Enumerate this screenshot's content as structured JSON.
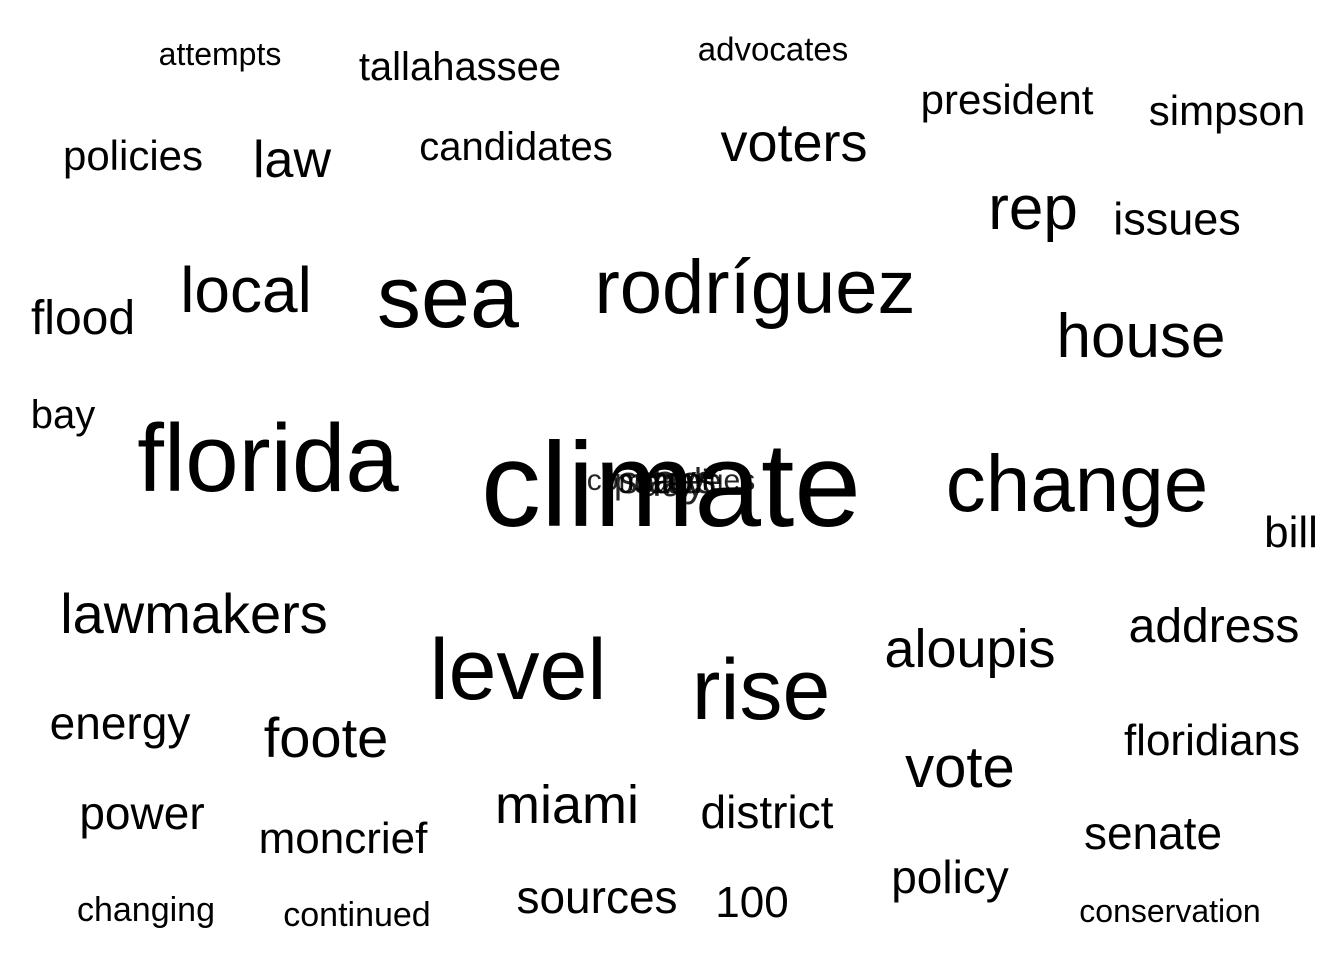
{
  "text_color": "#000000",
  "background_color": "#ffffff",
  "words": [
    "attempts",
    "tallahassee",
    "advocates",
    "president",
    "simpson",
    "policies",
    "law",
    "candidates",
    "voters",
    "rep",
    "issues",
    "local",
    "sea",
    "rodríguez",
    "flood",
    "house",
    "bay",
    "florida",
    "climate",
    "change",
    "bill",
    "lawmakers",
    "level",
    "rise",
    "aloupis",
    "address",
    "energy",
    "foote",
    "vote",
    "floridians",
    "power",
    "moncrief",
    "miami",
    "district",
    "senate",
    "policy",
    "changing",
    "continued",
    "sources",
    "100",
    "conservation",
    "communities",
    "state",
    "says",
    "day",
    "people"
  ]
}
